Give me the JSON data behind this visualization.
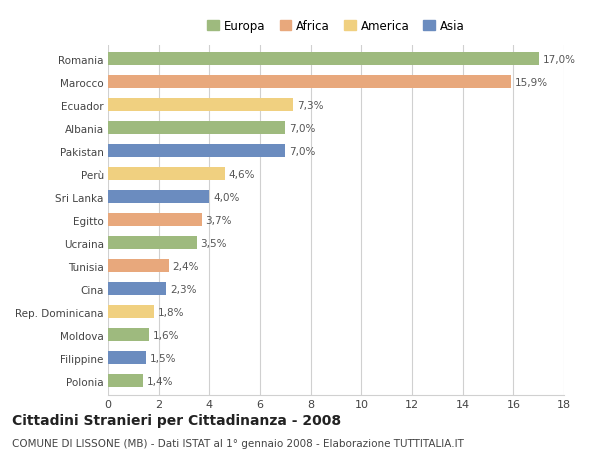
{
  "title": "Cittadini Stranieri per Cittadinanza - 2008",
  "subtitle": "COMUNE DI LISSONE (MB) - Dati ISTAT al 1° gennaio 2008 - Elaborazione TUTTITALIA.IT",
  "categories": [
    "Romania",
    "Marocco",
    "Ecuador",
    "Albania",
    "Pakistan",
    "Perù",
    "Sri Lanka",
    "Egitto",
    "Ucraina",
    "Tunisia",
    "Cina",
    "Rep. Dominicana",
    "Moldova",
    "Filippine",
    "Polonia"
  ],
  "values": [
    17.0,
    15.9,
    7.3,
    7.0,
    7.0,
    4.6,
    4.0,
    3.7,
    3.5,
    2.4,
    2.3,
    1.8,
    1.6,
    1.5,
    1.4
  ],
  "labels": [
    "17,0%",
    "15,9%",
    "7,3%",
    "7,0%",
    "7,0%",
    "4,6%",
    "4,0%",
    "3,7%",
    "3,5%",
    "2,4%",
    "2,3%",
    "1,8%",
    "1,6%",
    "1,5%",
    "1,4%"
  ],
  "continent": [
    "Europa",
    "Africa",
    "America",
    "Europa",
    "Asia",
    "America",
    "Asia",
    "Africa",
    "Europa",
    "Africa",
    "Asia",
    "America",
    "Europa",
    "Asia",
    "Europa"
  ],
  "colors": {
    "Europa": "#9eba7e",
    "Africa": "#e8a87c",
    "America": "#f0d080",
    "Asia": "#6b8cbf"
  },
  "legend_items": [
    "Europa",
    "Africa",
    "America",
    "Asia"
  ],
  "xlim": [
    0,
    18
  ],
  "xticks": [
    0,
    2,
    4,
    6,
    8,
    10,
    12,
    14,
    16,
    18
  ],
  "background_color": "#ffffff",
  "grid_color": "#d0d0d0",
  "bar_height": 0.55,
  "label_fontsize": 7.5,
  "ytick_fontsize": 7.5,
  "xtick_fontsize": 8,
  "legend_fontsize": 8.5,
  "title_fontsize": 10,
  "subtitle_fontsize": 7.5
}
